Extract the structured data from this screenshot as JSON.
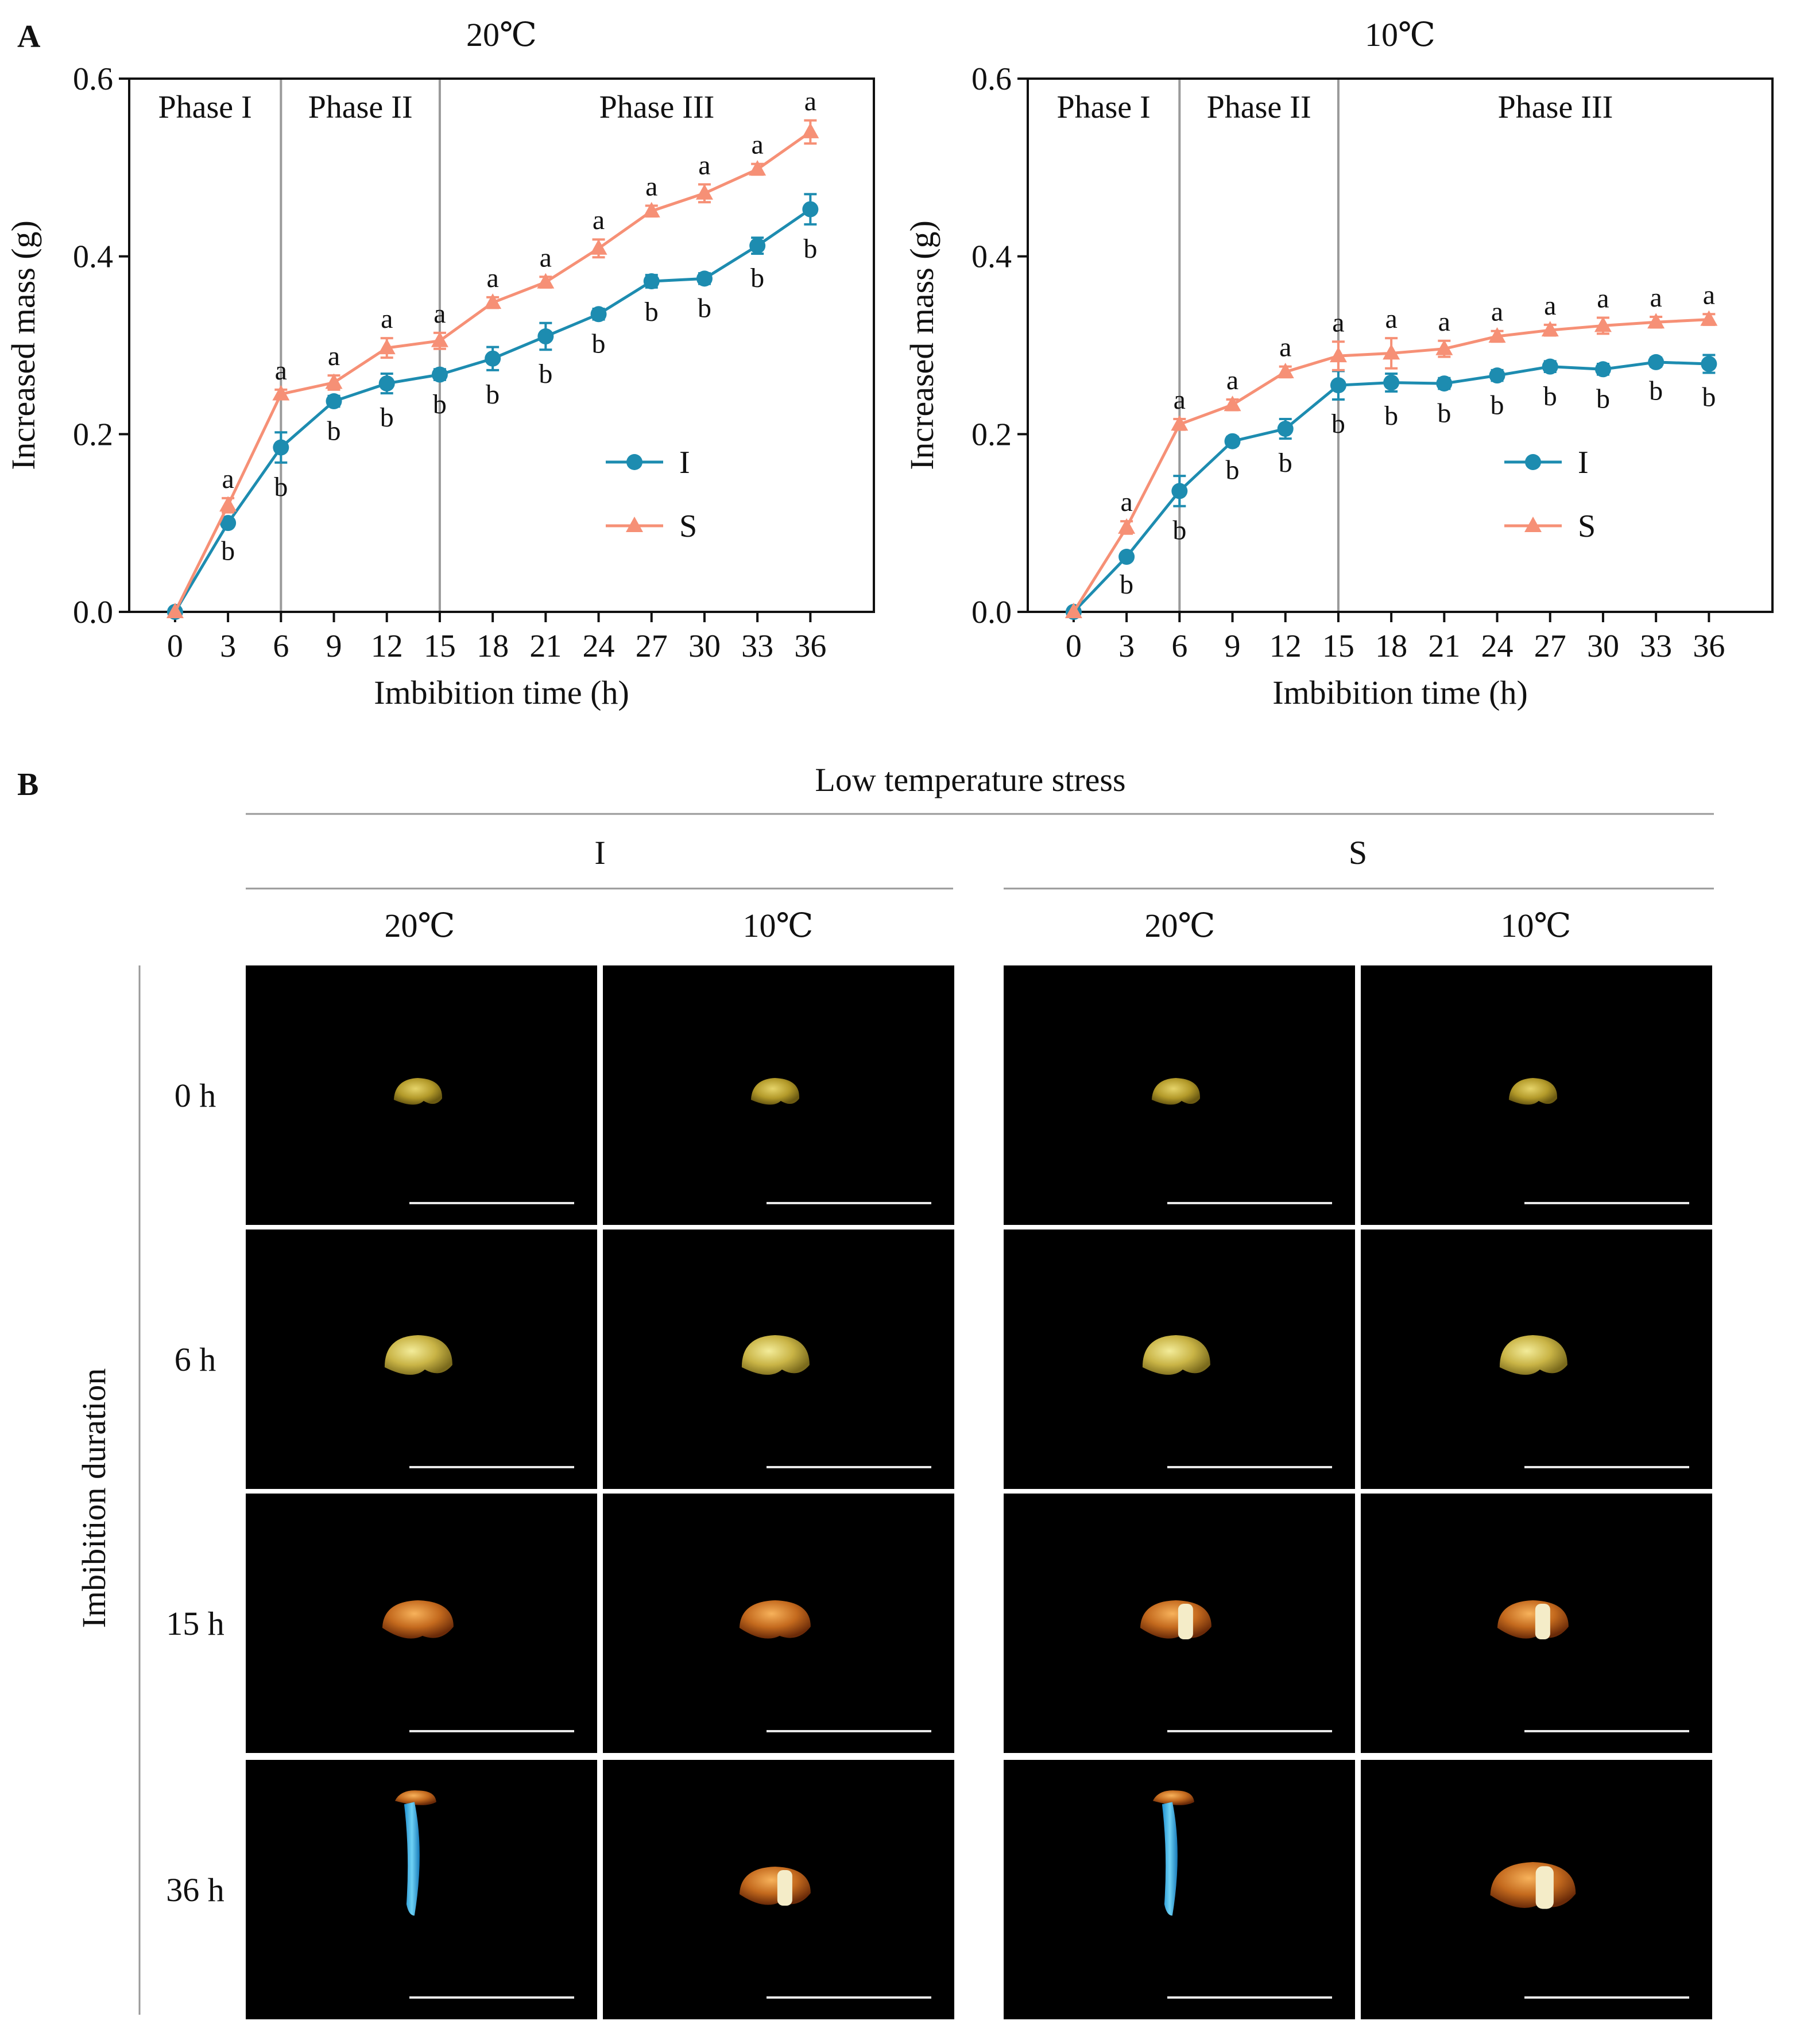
{
  "panel_a_label": "A",
  "panel_b_label": "B",
  "colors": {
    "I": "#1d8cb0",
    "S": "#f69076",
    "phase_line": "#9a9a9a",
    "tile": "#000000",
    "scale_bar": "#e8e8e8"
  },
  "chart_data": [
    {
      "type": "line",
      "title": "20℃",
      "xlabel": "Imbibition time (h)",
      "ylabel": "Increased mass (g)",
      "x": [
        0,
        3,
        6,
        9,
        12,
        15,
        18,
        21,
        24,
        27,
        30,
        33,
        36
      ],
      "xticks": [
        "0",
        "3",
        "6",
        "9",
        "12",
        "15",
        "18",
        "21",
        "24",
        "27",
        "30",
        "33",
        "36"
      ],
      "yticks": [
        "0.0",
        "0.2",
        "0.4",
        "0.6"
      ],
      "ylim": [
        0,
        0.6
      ],
      "xlim": [
        -2.6,
        39.6
      ],
      "phases": [
        {
          "label": "Phase I",
          "from": -2.6,
          "to": 6
        },
        {
          "label": "Phase II",
          "from": 6,
          "to": 15
        },
        {
          "label": "Phase III",
          "from": 15,
          "to": 39.6
        }
      ],
      "phase_boundaries": [
        6,
        15
      ],
      "legend": [
        "I",
        "S"
      ],
      "legend_position": "center-right",
      "series": [
        {
          "name": "I",
          "marker": "circle",
          "values": [
            0.0,
            0.1,
            0.185,
            0.237,
            0.257,
            0.267,
            0.285,
            0.31,
            0.335,
            0.372,
            0.375,
            0.412,
            0.453
          ],
          "errors": [
            0,
            0.004,
            0.017,
            0.006,
            0.011,
            0.006,
            0.013,
            0.015,
            0.006,
            0.007,
            0.006,
            0.009,
            0.017
          ],
          "letters": [
            "",
            "b",
            "b",
            "b",
            "b",
            "b",
            "b",
            "b",
            "b",
            "b",
            "b",
            "b",
            "b"
          ]
        },
        {
          "name": "S",
          "marker": "triangle",
          "values": [
            0.0,
            0.12,
            0.245,
            0.258,
            0.297,
            0.305,
            0.348,
            0.371,
            0.409,
            0.451,
            0.471,
            0.498,
            0.54
          ],
          "errors": [
            0,
            0.008,
            0.005,
            0.008,
            0.011,
            0.009,
            0.006,
            0.006,
            0.01,
            0.006,
            0.01,
            0.006,
            0.013
          ],
          "letters": [
            "",
            "a",
            "a",
            "a",
            "a",
            "a",
            "a",
            "a",
            "a",
            "a",
            "a",
            "a",
            "a"
          ]
        }
      ]
    },
    {
      "type": "line",
      "title": "10℃",
      "xlabel": "Imbibition time (h)",
      "ylabel": "Increased mass (g)",
      "x": [
        0,
        3,
        6,
        9,
        12,
        15,
        18,
        21,
        24,
        27,
        30,
        33,
        36
      ],
      "xticks": [
        "0",
        "3",
        "6",
        "9",
        "12",
        "15",
        "18",
        "21",
        "24",
        "27",
        "30",
        "33",
        "36"
      ],
      "yticks": [
        "0.0",
        "0.2",
        "0.4",
        "0.6"
      ],
      "ylim": [
        0,
        0.6
      ],
      "xlim": [
        -2.6,
        39.6
      ],
      "phases": [
        {
          "label": "Phase I",
          "from": -2.6,
          "to": 6
        },
        {
          "label": "Phase II",
          "from": 6,
          "to": 15
        },
        {
          "label": "Phase III",
          "from": 15,
          "to": 39.6
        }
      ],
      "phase_boundaries": [
        6,
        15
      ],
      "legend": [
        "I",
        "S"
      ],
      "legend_position": "center-right",
      "series": [
        {
          "name": "I",
          "marker": "circle",
          "values": [
            0.0,
            0.062,
            0.136,
            0.192,
            0.206,
            0.255,
            0.258,
            0.257,
            0.266,
            0.276,
            0.273,
            0.281,
            0.279
          ],
          "errors": [
            0,
            0.004,
            0.017,
            0.005,
            0.011,
            0.016,
            0.01,
            0.006,
            0.006,
            0.006,
            0.006,
            0.005,
            0.01
          ],
          "letters": [
            "",
            "b",
            "b",
            "b",
            "b",
            "b",
            "b",
            "b",
            "b",
            "b",
            "b",
            "b",
            "b"
          ]
        },
        {
          "name": "S",
          "marker": "triangle",
          "values": [
            0.0,
            0.095,
            0.211,
            0.233,
            0.27,
            0.288,
            0.291,
            0.296,
            0.31,
            0.317,
            0.322,
            0.326,
            0.329
          ],
          "errors": [
            0,
            0.007,
            0.006,
            0.006,
            0.006,
            0.016,
            0.017,
            0.009,
            0.006,
            0.006,
            0.009,
            0.006,
            0.006
          ],
          "letters": [
            "",
            "a",
            "a",
            "a",
            "a",
            "a",
            "a",
            "a",
            "a",
            "a",
            "a",
            "a",
            "a"
          ]
        }
      ]
    }
  ],
  "panel_b": {
    "title": "Low temperature stress",
    "groups": [
      "I",
      "S"
    ],
    "temperatures": [
      "20℃",
      "10℃",
      "20℃",
      "10℃"
    ],
    "row_axis_label": "Imbibition duration",
    "rows": [
      "0 h",
      "6 h",
      "15 h",
      "36 h"
    ],
    "tiles": [
      [
        "yellow-seed",
        "yellow-seed",
        "yellow-seed",
        "yellow-seed"
      ],
      [
        "swollen-seed",
        "swollen-seed",
        "swollen-seed",
        "swollen-seed"
      ],
      [
        "brown-seed",
        "brown-seed",
        "brown-seed-radicle",
        "brown-seed-radicle"
      ],
      [
        "seedling-root",
        "brown-seed-radicle",
        "seedling-root",
        "large-seed-radicle"
      ]
    ]
  }
}
